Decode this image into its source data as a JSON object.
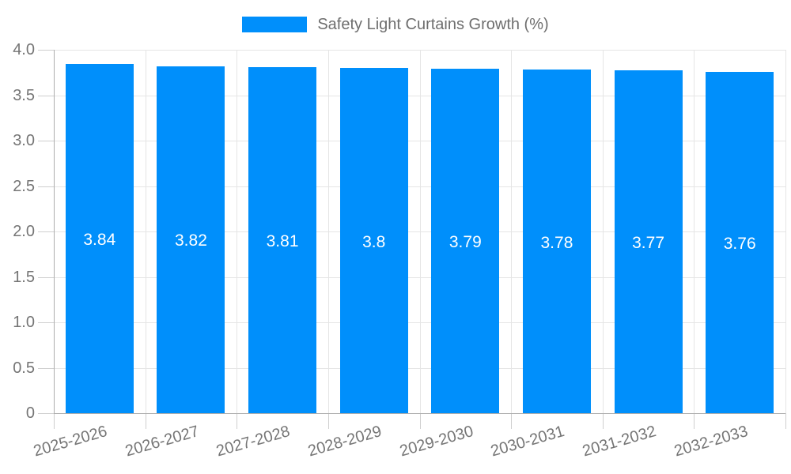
{
  "chart_data": {
    "type": "bar",
    "title": "Safety Light Curtains Growth (%)",
    "categories": [
      "2025-2026",
      "2026-2027",
      "2027-2028",
      "2028-2029",
      "2029-2030",
      "2030-2031",
      "2031-2032",
      "2032-2033"
    ],
    "values": [
      3.84,
      3.82,
      3.81,
      3.8,
      3.79,
      3.78,
      3.77,
      3.76
    ],
    "value_labels": [
      "3.84",
      "3.82",
      "3.81",
      "3.8",
      "3.79",
      "3.78",
      "3.77",
      "3.76"
    ],
    "xlabel": "",
    "ylabel": "",
    "ylim": [
      0,
      4
    ],
    "ytick_step": 0.5,
    "ytick_labels": [
      "0",
      "0.5",
      "1.0",
      "1.5",
      "2.0",
      "2.5",
      "3.0",
      "3.5",
      "4.0"
    ],
    "grid": true,
    "legend_position": "top",
    "x_label_rotation_deg": -16
  },
  "colors": {
    "bar": "#008FFB",
    "bar_value_text": "#FFFFFF",
    "legend_text": "#6E6E6E",
    "axis_text": "#757575",
    "grid_line": "#E5E5E5",
    "tick_line": "#CFCFCF",
    "axis_line": "#ADADAD",
    "background": "#FFFFFF"
  }
}
